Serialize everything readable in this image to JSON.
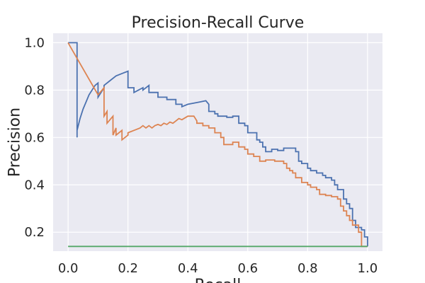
{
  "chart_data": {
    "type": "line",
    "title": "Precision-Recall Curve",
    "xlabel": "Recall",
    "ylabel": "Precision",
    "xlim": [
      -0.05,
      1.05
    ],
    "ylim": [
      0.12,
      1.04
    ],
    "xticks": [
      0.0,
      0.2,
      0.4,
      0.6,
      0.8,
      1.0
    ],
    "yticks": [
      0.2,
      0.4,
      0.6,
      0.8,
      1.0
    ],
    "xtick_labels": [
      "0.0",
      "0.2",
      "0.4",
      "0.6",
      "0.8",
      "1.0"
    ],
    "ytick_labels": [
      "0.2",
      "0.4",
      "0.6",
      "0.8",
      "1.0"
    ],
    "grid": true,
    "legend": false,
    "background": "#eaeaf2",
    "series": [
      {
        "color": "#4c72b0",
        "x": [
          0.0,
          0.03,
          0.03,
          0.03,
          0.04,
          0.05,
          0.06,
          0.07,
          0.08,
          0.09,
          0.1,
          0.1,
          0.12,
          0.12,
          0.14,
          0.16,
          0.18,
          0.2,
          0.2,
          0.22,
          0.22,
          0.25,
          0.25,
          0.27,
          0.27,
          0.3,
          0.3,
          0.33,
          0.33,
          0.36,
          0.36,
          0.38,
          0.38,
          0.4,
          0.42,
          0.44,
          0.46,
          0.47,
          0.47,
          0.49,
          0.49,
          0.5,
          0.5,
          0.53,
          0.53,
          0.55,
          0.55,
          0.57,
          0.57,
          0.59,
          0.59,
          0.6,
          0.6,
          0.63,
          0.63,
          0.64,
          0.64,
          0.65,
          0.65,
          0.66,
          0.66,
          0.68,
          0.68,
          0.7,
          0.7,
          0.72,
          0.72,
          0.76,
          0.76,
          0.77,
          0.77,
          0.78,
          0.78,
          0.8,
          0.8,
          0.81,
          0.81,
          0.83,
          0.83,
          0.85,
          0.85,
          0.86,
          0.86,
          0.88,
          0.88,
          0.89,
          0.89,
          0.9,
          0.9,
          0.92,
          0.92,
          0.93,
          0.93,
          0.94,
          0.94,
          0.95,
          0.95,
          0.96,
          0.96,
          0.98,
          0.98,
          0.99,
          0.99,
          1.0,
          1.0
        ],
        "y": [
          1.0,
          1.0,
          0.6,
          0.63,
          0.68,
          0.72,
          0.75,
          0.78,
          0.8,
          0.82,
          0.83,
          0.77,
          0.81,
          0.82,
          0.84,
          0.86,
          0.87,
          0.88,
          0.81,
          0.81,
          0.79,
          0.81,
          0.8,
          0.82,
          0.79,
          0.79,
          0.77,
          0.77,
          0.76,
          0.76,
          0.74,
          0.74,
          0.73,
          0.74,
          0.745,
          0.75,
          0.755,
          0.74,
          0.71,
          0.71,
          0.7,
          0.7,
          0.69,
          0.69,
          0.685,
          0.685,
          0.69,
          0.69,
          0.66,
          0.66,
          0.65,
          0.65,
          0.62,
          0.62,
          0.59,
          0.59,
          0.58,
          0.58,
          0.56,
          0.56,
          0.54,
          0.54,
          0.55,
          0.55,
          0.545,
          0.545,
          0.555,
          0.555,
          0.54,
          0.54,
          0.5,
          0.5,
          0.49,
          0.49,
          0.47,
          0.47,
          0.46,
          0.46,
          0.45,
          0.45,
          0.44,
          0.44,
          0.43,
          0.43,
          0.42,
          0.42,
          0.4,
          0.4,
          0.38,
          0.38,
          0.34,
          0.34,
          0.32,
          0.32,
          0.3,
          0.3,
          0.25,
          0.25,
          0.22,
          0.22,
          0.21,
          0.21,
          0.18,
          0.18,
          0.14
        ]
      },
      {
        "color": "#dd8452",
        "x": [
          0.0,
          0.1,
          0.12,
          0.12,
          0.13,
          0.13,
          0.15,
          0.15,
          0.16,
          0.16,
          0.18,
          0.18,
          0.2,
          0.2,
          0.22,
          0.24,
          0.25,
          0.26,
          0.27,
          0.28,
          0.29,
          0.3,
          0.31,
          0.32,
          0.33,
          0.34,
          0.35,
          0.36,
          0.37,
          0.38,
          0.4,
          0.42,
          0.43,
          0.43,
          0.45,
          0.45,
          0.47,
          0.47,
          0.49,
          0.49,
          0.51,
          0.51,
          0.52,
          0.52,
          0.55,
          0.55,
          0.57,
          0.57,
          0.59,
          0.59,
          0.6,
          0.6,
          0.62,
          0.62,
          0.64,
          0.64,
          0.66,
          0.66,
          0.69,
          0.69,
          0.72,
          0.72,
          0.73,
          0.73,
          0.74,
          0.74,
          0.75,
          0.75,
          0.76,
          0.76,
          0.78,
          0.78,
          0.8,
          0.8,
          0.81,
          0.81,
          0.83,
          0.83,
          0.84,
          0.84,
          0.86,
          0.86,
          0.88,
          0.88,
          0.9,
          0.9,
          0.91,
          0.91,
          0.92,
          0.92,
          0.93,
          0.93,
          0.94,
          0.94,
          0.95,
          0.95,
          0.97,
          0.97,
          0.98,
          0.98,
          1.0
        ],
        "y": [
          1.0,
          0.78,
          0.81,
          0.69,
          0.71,
          0.66,
          0.69,
          0.61,
          0.64,
          0.61,
          0.63,
          0.59,
          0.61,
          0.62,
          0.63,
          0.64,
          0.65,
          0.64,
          0.65,
          0.64,
          0.65,
          0.655,
          0.65,
          0.66,
          0.655,
          0.665,
          0.66,
          0.67,
          0.68,
          0.675,
          0.69,
          0.69,
          0.67,
          0.66,
          0.66,
          0.65,
          0.65,
          0.64,
          0.64,
          0.62,
          0.62,
          0.6,
          0.6,
          0.57,
          0.57,
          0.58,
          0.58,
          0.56,
          0.56,
          0.55,
          0.55,
          0.53,
          0.53,
          0.52,
          0.52,
          0.5,
          0.5,
          0.505,
          0.505,
          0.5,
          0.5,
          0.49,
          0.49,
          0.47,
          0.47,
          0.46,
          0.46,
          0.45,
          0.45,
          0.43,
          0.43,
          0.41,
          0.41,
          0.4,
          0.4,
          0.39,
          0.39,
          0.38,
          0.38,
          0.36,
          0.36,
          0.355,
          0.355,
          0.35,
          0.35,
          0.34,
          0.34,
          0.31,
          0.31,
          0.29,
          0.29,
          0.27,
          0.27,
          0.25,
          0.25,
          0.23,
          0.23,
          0.2,
          0.2,
          0.14,
          0.14
        ]
      },
      {
        "color": "#55a868",
        "x": [
          0.0,
          1.0
        ],
        "y": [
          0.14,
          0.14
        ]
      }
    ]
  }
}
